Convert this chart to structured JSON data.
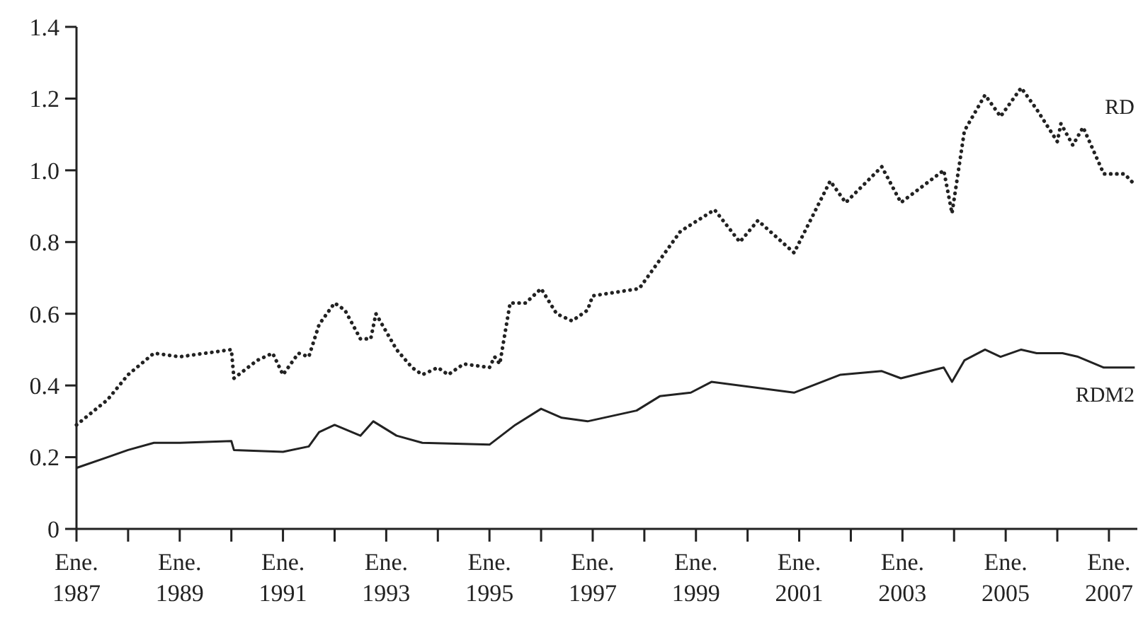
{
  "chart_data": {
    "type": "line",
    "xlim": [
      1987,
      2007.55
    ],
    "ylim": [
      0,
      1.4
    ],
    "yticks": [
      0,
      {
        "value": 0.2,
        "label": "0.2"
      },
      {
        "value": 0.4,
        "label": "0.4"
      },
      {
        "value": 0.6,
        "label": "0.6"
      },
      {
        "value": 0.8,
        "label": "0.8"
      },
      {
        "value": 1,
        "label": "1.0"
      },
      {
        "value": 1.2,
        "label": "1.2"
      },
      {
        "value": 1.4,
        "label": "1.4"
      }
    ],
    "xticks": [
      {
        "value": 1987,
        "label": "Ene. 1987"
      },
      {
        "value": 1988,
        "label": null
      },
      {
        "value": 1989,
        "label": "Ene. 1989"
      },
      {
        "value": 1990,
        "label": null
      },
      {
        "value": 1991,
        "label": "Ene. 1991"
      },
      {
        "value": 1992,
        "label": null
      },
      {
        "value": 1993,
        "label": "Ene. 1993"
      },
      {
        "value": 1994,
        "label": null
      },
      {
        "value": 1995,
        "label": "Ene. 1995"
      },
      {
        "value": 1996,
        "label": null
      },
      {
        "value": 1997,
        "label": "Ene. 1997"
      },
      {
        "value": 1998,
        "label": null
      },
      {
        "value": 1999,
        "label": "Ene. 1999"
      },
      {
        "value": 2000,
        "label": null
      },
      {
        "value": 2001,
        "label": "Ene. 2001"
      },
      {
        "value": 2002,
        "label": null
      },
      {
        "value": 2003,
        "label": "Ene. 2003"
      },
      {
        "value": 2004,
        "label": null
      },
      {
        "value": 2005,
        "label": "Ene. 2005"
      },
      {
        "value": 2006,
        "label": null
      },
      {
        "value": 2007,
        "label": "Ene. 2007"
      }
    ],
    "grid": false,
    "legend": false,
    "marker": "none",
    "series": [
      {
        "name": "RD",
        "color": "#222222",
        "line_style": "dotted",
        "x": [
          1987,
          1987.6,
          1988,
          1988.5,
          1989,
          1989.5,
          1990,
          1990.05,
          1990.5,
          1990.8,
          1991,
          1991.3,
          1991.5,
          1991.7,
          1992,
          1992.2,
          1992.5,
          1992.7,
          1992.8,
          1993.2,
          1993.5,
          1993.7,
          1994,
          1994.2,
          1994.5,
          1995,
          1995.1,
          1995.2,
          1995.4,
          1995.7,
          1996,
          1996.3,
          1996.6,
          1996.9,
          1997,
          1997.9,
          1998.3,
          1998.7,
          1999.36,
          1999.85,
          2000.2,
          2000.9,
          2001.6,
          2001.9,
          2002.6,
          2002.97,
          2003.8,
          2003.96,
          2004.2,
          2004.6,
          2004.9,
          2005.3,
          2005.6,
          2006,
          2006.07,
          2006.3,
          2006.5,
          2006.9,
          2007.3,
          2007.5
        ],
        "values": [
          0.29,
          0.36,
          0.43,
          0.49,
          0.48,
          0.49,
          0.5,
          0.42,
          0.47,
          0.49,
          0.43,
          0.49,
          0.48,
          0.57,
          0.63,
          0.61,
          0.53,
          0.53,
          0.6,
          0.5,
          0.45,
          0.43,
          0.45,
          0.43,
          0.46,
          0.45,
          0.48,
          0.46,
          0.63,
          0.63,
          0.67,
          0.6,
          0.58,
          0.61,
          0.65,
          0.67,
          0.75,
          0.83,
          0.89,
          0.8,
          0.86,
          0.77,
          0.97,
          0.91,
          1.01,
          0.91,
          1.0,
          0.88,
          1.11,
          1.21,
          1.15,
          1.23,
          1.17,
          1.08,
          1.13,
          1.07,
          1.12,
          0.99,
          0.99,
          0.96
        ]
      },
      {
        "name": "RDM2",
        "color": "#222222",
        "line_style": "solid",
        "x": [
          1987,
          1987.6,
          1988,
          1988.5,
          1989,
          1990,
          1990.05,
          1991,
          1991.5,
          1991.7,
          1992,
          1992.5,
          1992.75,
          1993.2,
          1993.7,
          1995,
          1995.5,
          1996,
          1996.4,
          1996.9,
          1997.85,
          1998.3,
          1998.9,
          1999.3,
          2000.9,
          2001.8,
          2002.6,
          2002.97,
          2003.8,
          2003.96,
          2004.2,
          2004.6,
          2004.9,
          2005.3,
          2005.6,
          2006.1,
          2006.4,
          2006.9,
          2007.5
        ],
        "values": [
          0.17,
          0.2,
          0.22,
          0.24,
          0.24,
          0.245,
          0.22,
          0.215,
          0.23,
          0.27,
          0.29,
          0.26,
          0.3,
          0.26,
          0.24,
          0.235,
          0.29,
          0.335,
          0.31,
          0.3,
          0.33,
          0.37,
          0.38,
          0.41,
          0.38,
          0.43,
          0.44,
          0.42,
          0.45,
          0.41,
          0.47,
          0.5,
          0.48,
          0.5,
          0.49,
          0.49,
          0.48,
          0.45,
          0.45
        ]
      }
    ]
  }
}
